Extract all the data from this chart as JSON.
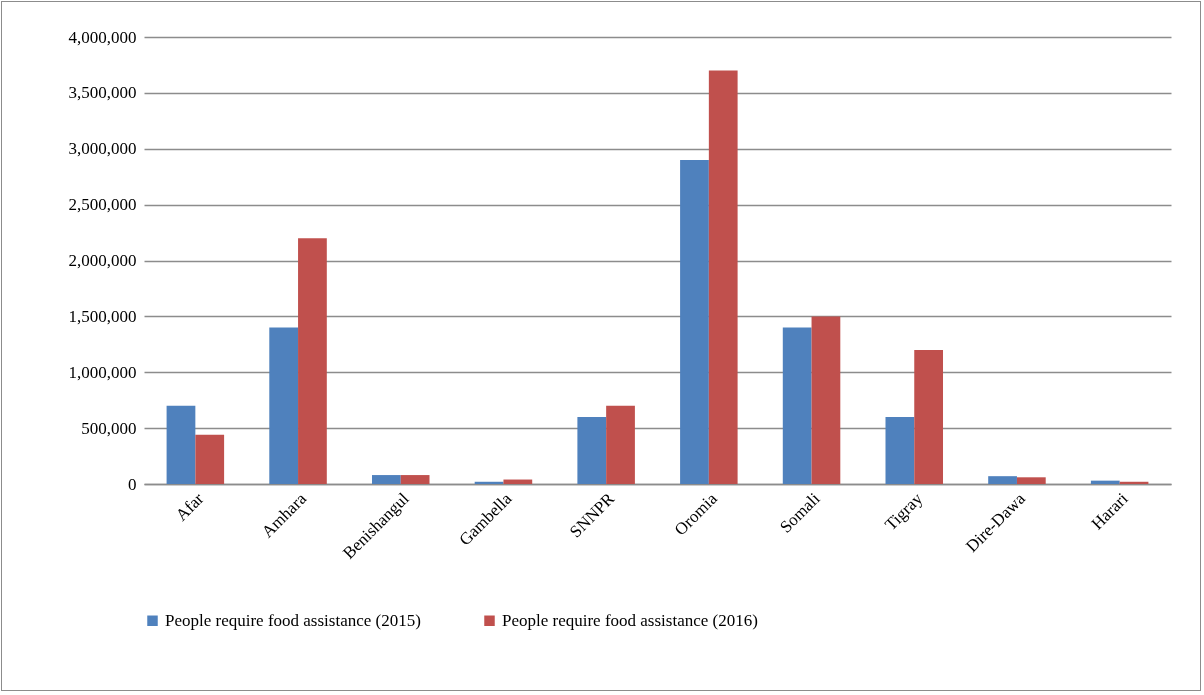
{
  "chart_data": {
    "type": "bar",
    "categories": [
      "Afar",
      "Amhara",
      "Benishangul",
      "Gambella",
      "SNNPR",
      "Oromia",
      "Somali",
      "Tigray",
      "Dire-Dawa",
      "Harari"
    ],
    "series": [
      {
        "name": "People require food assistance (2015)",
        "color": "#4f81bd",
        "values": [
          700000,
          1400000,
          80000,
          20000,
          600000,
          2900000,
          1400000,
          600000,
          70000,
          30000
        ]
      },
      {
        "name": "People require food assistance (2016)",
        "color": "#c0504d",
        "values": [
          440000,
          2200000,
          80000,
          40000,
          700000,
          3700000,
          1500000,
          1200000,
          60000,
          20000
        ]
      }
    ],
    "ylim": [
      0,
      4000000
    ],
    "yticks": [
      0,
      {
        "value": 500000,
        "label": "500,000"
      },
      {
        "value": 1000000,
        "label": "1,000,000"
      },
      {
        "value": 1500000,
        "label": "1,500,000"
      },
      {
        "value": 2000000,
        "label": "2,000,000"
      },
      {
        "value": 2500000,
        "label": "2,500,000"
      },
      {
        "value": 3000000,
        "label": "3,000,000"
      },
      {
        "value": 3500000,
        "label": "3,500,000"
      },
      {
        "value": 4000000,
        "label": "4,000,000"
      }
    ],
    "grid": "y",
    "legend": "bottom"
  }
}
